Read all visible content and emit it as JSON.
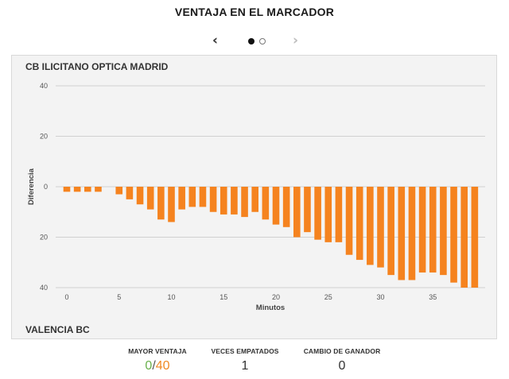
{
  "title": "VENTAJA EN EL MARCADOR",
  "nav": {
    "prev_icon": "chevron-left-icon",
    "next_icon": "chevron-right-icon",
    "page": 1,
    "pages": 2
  },
  "teams": {
    "top": "CB ILICITANO OPTICA MADRID",
    "bottom": "VALENCIA BC"
  },
  "colors": {
    "bar": "#f5831f",
    "green": "#6ab04c",
    "orange": "#f08a24"
  },
  "chart_data": {
    "type": "bar",
    "xlabel": "Minutos",
    "ylabel": "Diferencia",
    "xlim": [
      0,
      40
    ],
    "ylim": [
      -40,
      40
    ],
    "x_ticks": [
      0,
      5,
      10,
      15,
      20,
      25,
      30,
      35
    ],
    "y_ticks": [
      40,
      20,
      0,
      -20,
      -40
    ],
    "y_tick_labels": [
      "40",
      "20",
      "0",
      "20",
      "40"
    ],
    "grid": true,
    "x": [
      0,
      1,
      2,
      3,
      4,
      5,
      6,
      7,
      8,
      9,
      10,
      11,
      12,
      13,
      14,
      15,
      16,
      17,
      18,
      19,
      20,
      21,
      22,
      23,
      24,
      25,
      26,
      27,
      28,
      29,
      30,
      31,
      32,
      33,
      34,
      35,
      36,
      37,
      38,
      39
    ],
    "values": [
      -2,
      -2,
      -2,
      -2,
      0,
      -3,
      -5,
      -7,
      -9,
      -13,
      -14,
      -9,
      -8,
      -8,
      -10,
      -11,
      -11,
      -12,
      -10,
      -13,
      -15,
      -16,
      -20,
      -18,
      -21,
      -22,
      -22,
      -27,
      -29,
      -31,
      -32,
      -35,
      -37,
      -37,
      -34,
      -34,
      -35,
      -38,
      -40,
      -40
    ]
  },
  "stats": {
    "mayor_ventaja": {
      "label": "MAYOR VENTAJA",
      "home": "0",
      "sep": "/",
      "away": "40"
    },
    "empatados": {
      "label": "VECES EMPATADOS",
      "value": "1"
    },
    "cambio": {
      "label": "CAMBIO DE GANADOR",
      "value": "0"
    }
  }
}
